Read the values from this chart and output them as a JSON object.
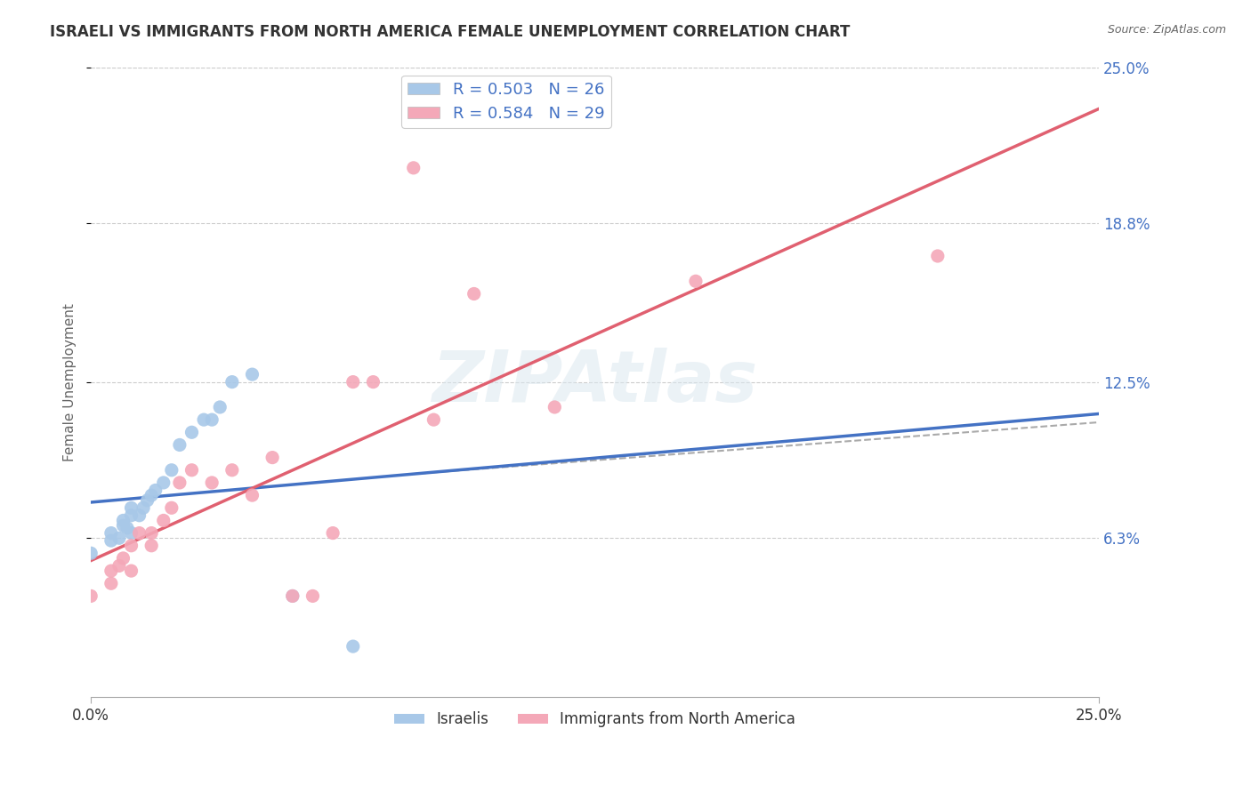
{
  "title": "ISRAELI VS IMMIGRANTS FROM NORTH AMERICA FEMALE UNEMPLOYMENT CORRELATION CHART",
  "source": "Source: ZipAtlas.com",
  "ylabel": "Female Unemployment",
  "x_min": 0.0,
  "x_max": 0.25,
  "y_min": 0.0,
  "y_max": 0.25,
  "x_tick_labels": [
    "0.0%",
    "25.0%"
  ],
  "x_ticks": [
    0.0,
    0.25
  ],
  "y_tick_labels_right": [
    "6.3%",
    "12.5%",
    "18.8%",
    "25.0%"
  ],
  "y_ticks_right": [
    0.063,
    0.125,
    0.188,
    0.25
  ],
  "israeli_color": "#a8c8e8",
  "immigrant_color": "#f4a8b8",
  "israeli_line_color": "#4472c4",
  "immigrant_line_color": "#e06070",
  "dashed_line_color": "#aaaaaa",
  "israeli_R": 0.503,
  "israeli_N": 26,
  "immigrant_R": 0.584,
  "immigrant_N": 29,
  "legend_label_1": "Israelis",
  "legend_label_2": "Immigrants from North America",
  "watermark": "ZIPAtlas",
  "israeli_x": [
    0.0,
    0.005,
    0.005,
    0.007,
    0.008,
    0.008,
    0.009,
    0.01,
    0.01,
    0.01,
    0.012,
    0.013,
    0.014,
    0.015,
    0.016,
    0.018,
    0.02,
    0.022,
    0.025,
    0.028,
    0.03,
    0.032,
    0.035,
    0.04,
    0.05,
    0.065
  ],
  "israeli_y": [
    0.057,
    0.062,
    0.065,
    0.063,
    0.068,
    0.07,
    0.067,
    0.065,
    0.072,
    0.075,
    0.072,
    0.075,
    0.078,
    0.08,
    0.082,
    0.085,
    0.09,
    0.1,
    0.105,
    0.11,
    0.11,
    0.115,
    0.125,
    0.128,
    0.04,
    0.02
  ],
  "immigrant_x": [
    0.0,
    0.005,
    0.005,
    0.007,
    0.008,
    0.01,
    0.01,
    0.012,
    0.015,
    0.015,
    0.018,
    0.02,
    0.022,
    0.025,
    0.03,
    0.035,
    0.04,
    0.045,
    0.05,
    0.055,
    0.06,
    0.065,
    0.07,
    0.08,
    0.085,
    0.095,
    0.115,
    0.15,
    0.21
  ],
  "immigrant_y": [
    0.04,
    0.045,
    0.05,
    0.052,
    0.055,
    0.05,
    0.06,
    0.065,
    0.06,
    0.065,
    0.07,
    0.075,
    0.085,
    0.09,
    0.085,
    0.09,
    0.08,
    0.095,
    0.04,
    0.04,
    0.065,
    0.125,
    0.125,
    0.21,
    0.11,
    0.16,
    0.115,
    0.165,
    0.175
  ],
  "background_color": "#ffffff",
  "grid_color": "#cccccc",
  "title_color": "#333333",
  "right_axis_color": "#4472c4"
}
